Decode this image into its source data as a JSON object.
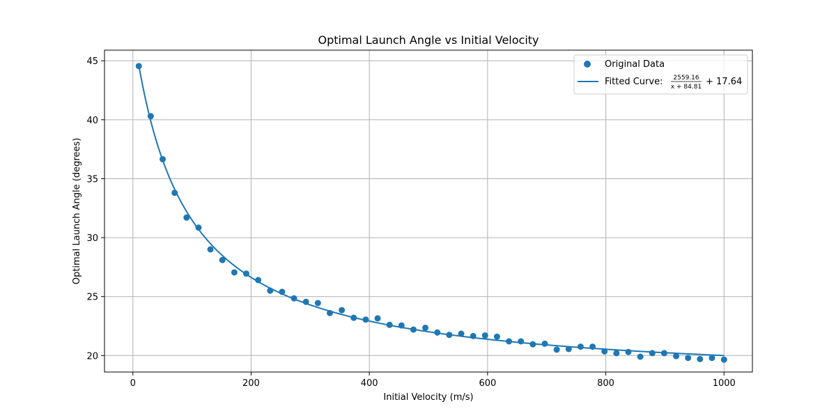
{
  "chart_data": {
    "type": "scatter",
    "title": "Optimal Launch Angle vs Initial Velocity",
    "xlabel": "Initial Velocity (m/s)",
    "ylabel": "Optimal Launch Angle (degrees)",
    "xlim": [
      -48,
      1048
    ],
    "ylim": [
      18.6,
      45.9
    ],
    "xticks": [
      0,
      200,
      400,
      600,
      800,
      1000
    ],
    "yticks": [
      20,
      25,
      30,
      35,
      40,
      45
    ],
    "grid": true,
    "legend_position": "top-right",
    "series": [
      {
        "name": "Original Data",
        "kind": "scatter",
        "color": "#1f77b4",
        "x": [
          10,
          30.2,
          50.4,
          70.6,
          90.8,
          111,
          131.2,
          151.4,
          171.6,
          191.8,
          212,
          232.2,
          252.4,
          272.6,
          292.8,
          313,
          333.2,
          353.4,
          373.6,
          393.8,
          414,
          434.2,
          454.4,
          474.6,
          494.8,
          515,
          535.2,
          555.4,
          575.6,
          595.8,
          616,
          636.2,
          656.4,
          676.6,
          696.8,
          717,
          737.2,
          757.4,
          777.6,
          797.8,
          818,
          838.2,
          858.4,
          878.6,
          898.8,
          919,
          939.2,
          959.4,
          979.6,
          1000
        ],
        "y": [
          44.55,
          40.3,
          36.65,
          33.8,
          31.7,
          30.85,
          29.0,
          28.1,
          27.05,
          26.95,
          26.4,
          25.5,
          25.4,
          24.85,
          24.55,
          24.45,
          23.6,
          23.85,
          23.2,
          23.05,
          23.15,
          22.6,
          22.55,
          22.2,
          22.35,
          21.95,
          21.75,
          21.85,
          21.65,
          21.7,
          21.6,
          21.2,
          21.2,
          20.95,
          21.0,
          20.5,
          20.55,
          20.75,
          20.75,
          20.35,
          20.2,
          20.3,
          19.9,
          20.2,
          20.2,
          19.95,
          19.8,
          19.7,
          19.8,
          19.65
        ]
      },
      {
        "name": "Fitted Curve:",
        "kind": "line",
        "color": "#1f77b4",
        "model": {
          "a": 2559.16,
          "b": 84.81,
          "c": 17.64
        },
        "x_range": [
          10,
          1000
        ],
        "formula": {
          "numerator": "2559.16",
          "denominator": "x + 84.81",
          "tail": "+ 17.64"
        }
      }
    ]
  }
}
